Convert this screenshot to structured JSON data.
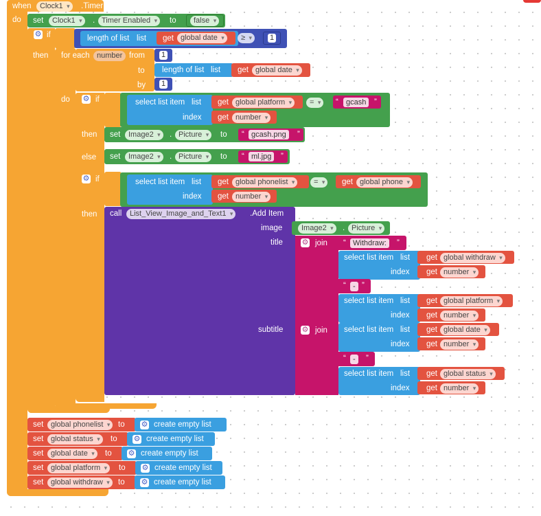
{
  "event": {
    "when": "when",
    "component": "Clock1",
    "event_name": ".Timer",
    "do": "do"
  },
  "set_timer": {
    "set": "set",
    "component": "Clock1",
    "dot": ".",
    "property": "Timer Enabled",
    "to": "to",
    "value": "false"
  },
  "if1": {
    "if": "if",
    "then": "then",
    "length_of_list": "length of list",
    "list": "list",
    "get": "get",
    "var": "global date",
    "op": "≥",
    "rhs": "1"
  },
  "for_each": {
    "for_each": "for each",
    "var": "number",
    "from": "from",
    "from_val": "1",
    "to": "to",
    "length_of_list": "length of list",
    "list": "list",
    "get": "get",
    "to_var": "global date",
    "by": "by",
    "by_val": "1",
    "do": "do"
  },
  "if2": {
    "if": "if",
    "then": "then",
    "else": "else",
    "select": "select list item",
    "list": "list",
    "index": "index",
    "get": "get",
    "list_var": "global platform",
    "index_var": "number",
    "op": "=",
    "value": "gcash",
    "then_set": {
      "set": "set",
      "component": "Image2",
      "dot": ".",
      "property": "Picture",
      "to": "to",
      "value": "gcash.png"
    },
    "else_set": {
      "set": "set",
      "component": "Image2",
      "dot": ".",
      "property": "Picture",
      "to": "to",
      "value": "ml.jpg"
    }
  },
  "if3": {
    "if": "if",
    "then": "then",
    "select": "select list item",
    "list": "list",
    "index": "index",
    "get": "get",
    "list_var": "global phonelist",
    "index_var": "number",
    "op": "=",
    "rhs_var": "global phone"
  },
  "call": {
    "call": "call",
    "component": "List_View_Image_and_Text1",
    "method": ".Add Item",
    "image": "image",
    "image_comp": "Image2",
    "image_dot": ".",
    "image_prop": "Picture",
    "title": "title",
    "subtitle": "subtitle",
    "join": "join",
    "title_str": "Withdraw: ",
    "dash": "-",
    "select": "select list item",
    "list": "list",
    "index": "index",
    "get": "get",
    "t_list": "global withdraw",
    "t_list2": "global platform",
    "s_list1": "global date",
    "s_list2": "global status",
    "index_var": "number"
  },
  "resets": [
    {
      "set": "set",
      "var": "global phonelist",
      "to": "to",
      "value": "create empty list"
    },
    {
      "set": "set",
      "var": "global status",
      "to": "to",
      "value": "create empty list"
    },
    {
      "set": "set",
      "var": "global date",
      "to": "to",
      "value": "create empty list"
    },
    {
      "set": "set",
      "var": "global platform",
      "to": "to",
      "value": "create empty list"
    },
    {
      "set": "set",
      "var": "global withdraw",
      "to": "to",
      "value": "create empty list"
    }
  ],
  "colors": {
    "event": "#f6a533",
    "logic": "#44a04d",
    "lists": "#3a9fe0",
    "variables": "#e35340",
    "component": "#5f34a8",
    "text": "#c6146a",
    "math": "#3f51b5"
  }
}
